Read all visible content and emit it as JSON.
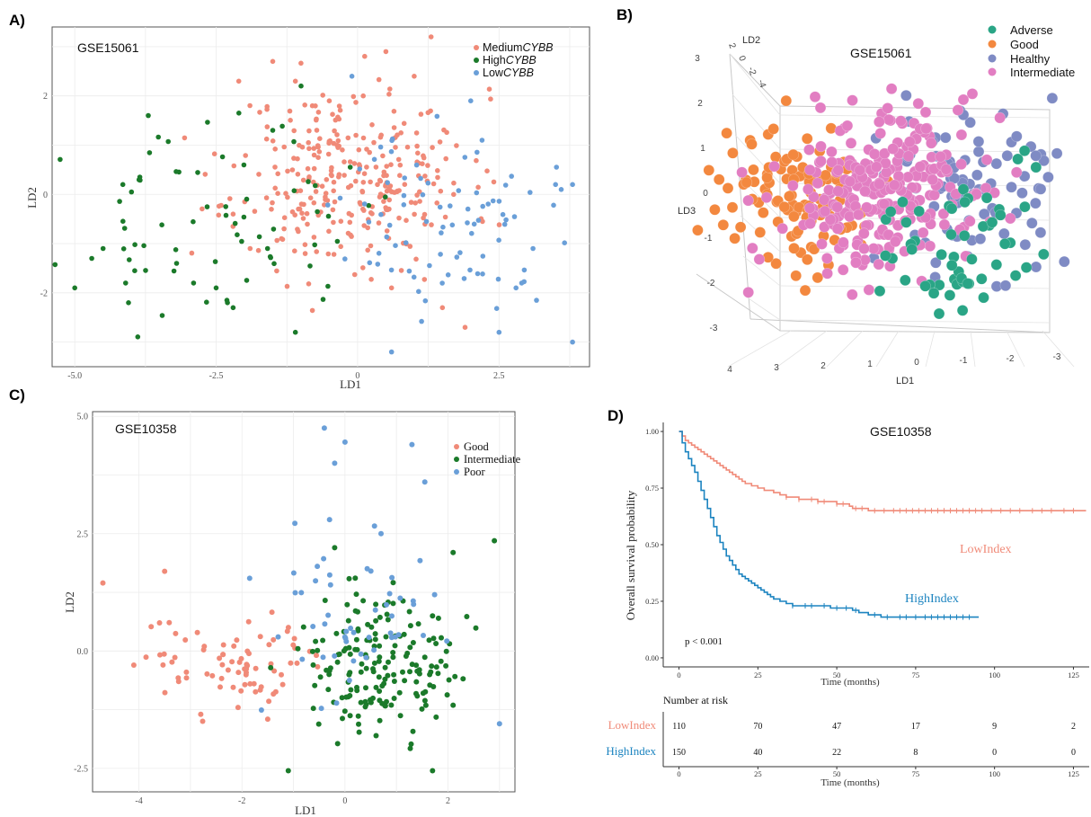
{
  "panels": {
    "a": {
      "letter": "A)"
    },
    "b": {
      "letter": "B)"
    },
    "c": {
      "letter": "C)"
    },
    "d": {
      "letter": "D)"
    }
  },
  "chart_data": [
    {
      "id": "a",
      "type": "scatter",
      "title": "GSE15061",
      "xlabel": "LD1",
      "ylabel": "LD2",
      "xlim": [
        -5.4,
        4.1
      ],
      "ylim": [
        -3.5,
        3.4
      ],
      "xticks": [
        -5.0,
        -2.5,
        0.0,
        2.5
      ],
      "xtick_labels": [
        "-5.0",
        "-2.5",
        "0",
        "2.5"
      ],
      "yticks": [
        -2,
        0,
        2
      ],
      "ytick_labels": [
        "-2",
        "0",
        "2"
      ],
      "grid": true,
      "legend_position": "top-right",
      "series": [
        {
          "name": "MediumCYBB",
          "name_plain": "Medium",
          "name_italic": "CYBB",
          "color": "#f08a78",
          "count": 300,
          "cx": -0.1,
          "cy": 0.35,
          "sx": 1.05,
          "sy": 0.9,
          "seed": 11,
          "points": [
            [
              -2.1,
              2.3
            ],
            [
              -1.5,
              2.7
            ],
            [
              -1.1,
              2.3
            ],
            [
              -0.5,
              1.9
            ],
            [
              0.1,
              2.0
            ],
            [
              1.3,
              3.2
            ],
            [
              1.0,
              2.4
            ],
            [
              0.5,
              2.9
            ],
            [
              -0.8,
              1.8
            ],
            [
              -1.3,
              -0.7
            ],
            [
              0.6,
              -1.9
            ],
            [
              1.5,
              -2.3
            ],
            [
              1.9,
              -2.7
            ],
            [
              -1.9,
              -1.1
            ],
            [
              -2.2,
              -0.4
            ]
          ]
        },
        {
          "name": "HighCYBB",
          "name_plain": "High",
          "name_italic": "CYBB",
          "color": "#1b7a2a",
          "count": 65,
          "cx": -2.5,
          "cy": -0.6,
          "sx": 1.3,
          "sy": 0.9,
          "seed": 23,
          "points": [
            [
              -5.0,
              -1.9
            ],
            [
              -4.1,
              -1.8
            ],
            [
              -4.05,
              -2.2
            ],
            [
              -4.7,
              -1.3
            ],
            [
              -4.5,
              -1.1
            ],
            [
              -3.7,
              1.6
            ],
            [
              -4.15,
              0.2
            ],
            [
              -3.2,
              -1.4
            ],
            [
              -2.9,
              -1.8
            ],
            [
              -2.5,
              -1.9
            ],
            [
              -2.3,
              -2.2
            ],
            [
              -2.2,
              -2.3
            ],
            [
              -1.5,
              1.3
            ],
            [
              -1.0,
              2.2
            ],
            [
              -1.1,
              -2.8
            ]
          ]
        },
        {
          "name": "LowCYBB",
          "name_plain": "Low",
          "name_italic": "CYBB",
          "color": "#6a9fd8",
          "count": 80,
          "cx": 1.6,
          "cy": -0.6,
          "sx": 0.9,
          "sy": 0.9,
          "seed": 37,
          "points": [
            [
              3.8,
              -3.0
            ],
            [
              0.6,
              -3.2
            ],
            [
              2.5,
              -2.8
            ],
            [
              3.1,
              -1.1
            ],
            [
              3.5,
              0.2
            ],
            [
              3.8,
              0.2
            ],
            [
              2.0,
              1.9
            ],
            [
              -0.1,
              2.4
            ],
            [
              2.8,
              -1.9
            ],
            [
              2.9,
              -1.8
            ],
            [
              2.2,
              1.1
            ],
            [
              3.6,
              0.1
            ]
          ]
        }
      ]
    },
    {
      "id": "b",
      "type": "scatter",
      "title": "GSE15061",
      "xlabel": "LD1",
      "ylabel": "LD2",
      "zlabel": "LD3",
      "ld1_ticks": [
        "4",
        "3",
        "2",
        "1",
        "0",
        "-1",
        "-2",
        "-3"
      ],
      "ld3_ticks": [
        "3",
        "2",
        "1",
        "0",
        "-1",
        "-2",
        "-3"
      ],
      "ld2_ticks": [
        "2",
        "0",
        "-2",
        "-4"
      ],
      "legend_position": "top-right",
      "series": [
        {
          "name": "Adverse",
          "color": "#2aa586",
          "count": 55,
          "cx": 1070,
          "cy": 275,
          "sx": 55,
          "sy": 42,
          "seed": 41
        },
        {
          "name": "Good",
          "color": "#f3883f",
          "count": 110,
          "cx": 885,
          "cy": 225,
          "sx": 48,
          "sy": 42,
          "seed": 43
        },
        {
          "name": "Healthy",
          "color": "#7f8bc4",
          "count": 90,
          "cx": 1085,
          "cy": 215,
          "sx": 48,
          "sy": 48,
          "seed": 47
        },
        {
          "name": "Intermediate",
          "color": "#e27ec2",
          "count": 260,
          "cx": 985,
          "cy": 215,
          "sx": 60,
          "sy": 45,
          "seed": 53
        }
      ]
    },
    {
      "id": "c",
      "type": "scatter",
      "title": "GSE10358",
      "xlabel": "LD1",
      "ylabel": "LD2",
      "xlim": [
        -4.9,
        3.3
      ],
      "ylim": [
        -3.0,
        5.1
      ],
      "xticks": [
        -4,
        -2,
        0,
        2
      ],
      "xtick_labels": [
        "-4",
        "-2",
        "0",
        "2"
      ],
      "yticks": [
        -2.5,
        0.0,
        2.5,
        5.0
      ],
      "ytick_labels": [
        "-2.5",
        "0.0",
        "2.5",
        "5.0"
      ],
      "grid": true,
      "legend_position": "top-right",
      "series": [
        {
          "name": "Good",
          "color": "#f08a78",
          "count": 75,
          "cx": -2.2,
          "cy": -0.2,
          "sx": 0.9,
          "sy": 0.55,
          "seed": 61,
          "points": [
            [
              -4.7,
              1.45
            ],
            [
              -3.5,
              1.7
            ],
            [
              -4.1,
              -0.3
            ],
            [
              -3.6,
              0.6
            ],
            [
              -2.8,
              -1.35
            ],
            [
              -1.5,
              -1.45
            ]
          ]
        },
        {
          "name": "Intermediate",
          "color": "#1b7a2a",
          "count": 175,
          "cx": 0.6,
          "cy": -0.45,
          "sx": 0.7,
          "sy": 0.75,
          "seed": 67,
          "points": [
            [
              2.9,
              2.35
            ],
            [
              1.7,
              -2.55
            ],
            [
              -1.1,
              -2.55
            ],
            [
              2.1,
              2.1
            ],
            [
              -0.2,
              2.2
            ]
          ]
        },
        {
          "name": "Poor",
          "color": "#6a9fd8",
          "count": 50,
          "cx": 0.3,
          "cy": 0.6,
          "sx": 0.9,
          "sy": 0.9,
          "seed": 71,
          "points": [
            [
              -0.4,
              4.75
            ],
            [
              0.0,
              4.45
            ],
            [
              -0.2,
              4.0
            ],
            [
              1.3,
              4.4
            ],
            [
              1.55,
              3.6
            ],
            [
              -0.3,
              2.8
            ],
            [
              0.7,
              2.5
            ],
            [
              3.0,
              -1.55
            ],
            [
              -1.85,
              1.55
            ]
          ]
        }
      ]
    },
    {
      "id": "d",
      "type": "line",
      "subtype": "kaplan-meier",
      "title": "GSE10358",
      "xlabel": "Time (months)",
      "ylabel": "Overall survival probability",
      "xlim": [
        -5,
        130
      ],
      "ylim": [
        -0.04,
        1.04
      ],
      "xticks": [
        0,
        25,
        50,
        75,
        100,
        125
      ],
      "xtick_labels": [
        "0",
        "25",
        "50",
        "75",
        "100",
        "125"
      ],
      "yticks": [
        0.0,
        0.25,
        0.5,
        0.75,
        1.0
      ],
      "ytick_labels": [
        "0.00",
        "0.25",
        "0.50",
        "0.75",
        "1.00"
      ],
      "annotation": "p < 0.001",
      "series": [
        {
          "name": "LowIndex",
          "color": "#f08a78",
          "x": [
            0,
            1,
            2,
            3,
            4,
            5,
            6,
            7,
            8,
            9,
            10,
            11,
            12,
            13,
            14,
            15,
            16,
            17,
            18,
            19,
            20,
            21,
            22,
            23,
            24,
            25,
            26,
            27,
            28,
            30,
            32,
            34,
            36,
            38,
            40,
            42,
            44,
            46,
            48,
            50,
            52,
            54,
            55,
            57,
            60,
            129
          ],
          "y": [
            1.0,
            0.98,
            0.96,
            0.95,
            0.94,
            0.93,
            0.92,
            0.91,
            0.9,
            0.89,
            0.88,
            0.87,
            0.86,
            0.85,
            0.84,
            0.83,
            0.82,
            0.81,
            0.8,
            0.79,
            0.78,
            0.77,
            0.77,
            0.76,
            0.76,
            0.75,
            0.75,
            0.74,
            0.74,
            0.73,
            0.72,
            0.71,
            0.71,
            0.7,
            0.7,
            0.7,
            0.69,
            0.69,
            0.69,
            0.68,
            0.68,
            0.67,
            0.66,
            0.66,
            0.65,
            0.65
          ],
          "censor_x": [
            34,
            38,
            42,
            44,
            46,
            50,
            52,
            56,
            58,
            62,
            65,
            68,
            70,
            72,
            74,
            76,
            78,
            80,
            82,
            84,
            86,
            88,
            90,
            92,
            94,
            96,
            99,
            102,
            105,
            108,
            112,
            115,
            118,
            122,
            125
          ]
        },
        {
          "name": "HighIndex",
          "color": "#1c84c0",
          "x": [
            0,
            1,
            2,
            3,
            4,
            5,
            6,
            7,
            8,
            9,
            10,
            11,
            12,
            13,
            14,
            15,
            16,
            17,
            18,
            19,
            20,
            21,
            22,
            23,
            24,
            25,
            26,
            27,
            28,
            29,
            30,
            32,
            34,
            36,
            38,
            40,
            44,
            48,
            52,
            55,
            57,
            60,
            64,
            95
          ],
          "y": [
            1.0,
            0.95,
            0.91,
            0.88,
            0.85,
            0.82,
            0.78,
            0.74,
            0.7,
            0.66,
            0.62,
            0.58,
            0.54,
            0.51,
            0.48,
            0.45,
            0.43,
            0.41,
            0.39,
            0.37,
            0.36,
            0.35,
            0.34,
            0.33,
            0.32,
            0.31,
            0.3,
            0.29,
            0.28,
            0.27,
            0.26,
            0.25,
            0.24,
            0.23,
            0.23,
            0.23,
            0.23,
            0.22,
            0.22,
            0.21,
            0.2,
            0.19,
            0.18,
            0.18
          ],
          "censor_x": [
            36,
            40,
            42,
            46,
            50,
            53,
            56,
            62,
            66,
            70,
            72,
            75,
            78,
            80,
            82,
            84,
            86,
            88,
            90,
            92
          ]
        }
      ],
      "risk_table": {
        "title": "Number at risk",
        "xlabel": "Time (months)",
        "times": [
          0,
          25,
          50,
          75,
          100,
          125
        ],
        "time_labels": [
          "0",
          "25",
          "50",
          "75",
          "100",
          "125"
        ],
        "rows": [
          {
            "name": "LowIndex",
            "color": "#f08a78",
            "values": [
              "110",
              "70",
              "47",
              "17",
              "9",
              "2"
            ]
          },
          {
            "name": "HighIndex",
            "color": "#1c84c0",
            "values": [
              "150",
              "40",
              "22",
              "8",
              "0",
              "0"
            ]
          }
        ]
      }
    }
  ]
}
